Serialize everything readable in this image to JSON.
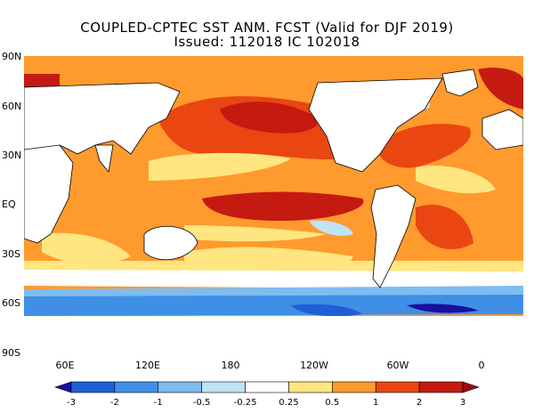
{
  "title_line1": "COUPLED-CPTEC SST ANM. FCST  (Valid for DJF 2019)",
  "title_line2": "Issued:  112018 IC 102018",
  "lat_labels": [
    "90N",
    "60N",
    "30N",
    "EQ",
    "30S",
    "60S",
    "90S"
  ],
  "lon_labels": [
    "60E",
    "120E",
    "180",
    "120W",
    "60W",
    "0"
  ],
  "colorbar": {
    "tick_labels": [
      "-3",
      "-2",
      "-1",
      "-0.5",
      "-0.25",
      "0.25",
      "0.5",
      "1",
      "2",
      "3"
    ],
    "colors": [
      "#1a0f9e",
      "#1f5fd6",
      "#3f8fe6",
      "#7fbcef",
      "#bfe4f6",
      "#ffffff",
      "#ffe680",
      "#ff9a2e",
      "#ea4612",
      "#c41a10",
      "#9c0f0f"
    ]
  },
  "land_color": "#ffffff",
  "legend_name": "SST anomaly color scale"
}
